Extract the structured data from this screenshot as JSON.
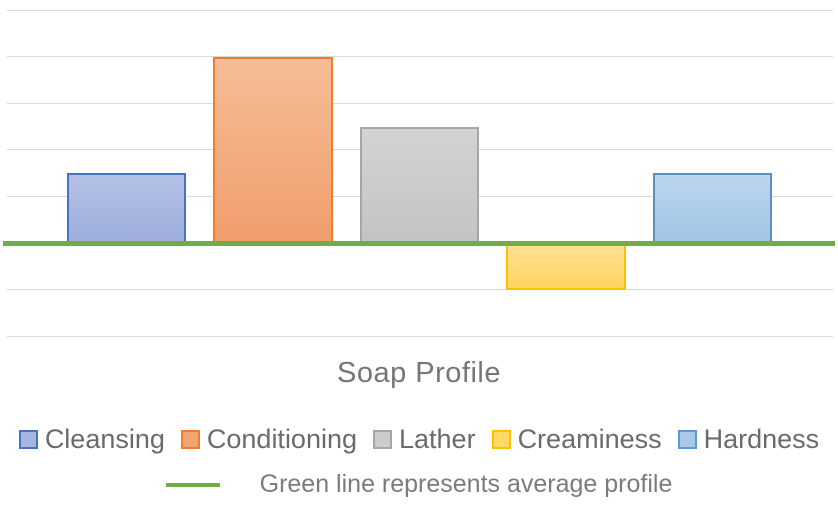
{
  "chart": {
    "title": "Soap Profile",
    "legend": {
      "items": [
        {
          "label": "Cleansing",
          "fill": "#a6b6e1",
          "border": "#4472c4"
        },
        {
          "label": "Conditioning",
          "fill": "#f2a573",
          "border": "#ed7d31"
        },
        {
          "label": "Lather",
          "fill": "#cccccc",
          "border": "#a6a6a6"
        },
        {
          "label": "Creaminess",
          "fill": "#ffd966",
          "border": "#ffc000"
        },
        {
          "label": "Hardness",
          "fill": "#a9c9e7",
          "border": "#5b9bd5"
        }
      ],
      "average": {
        "label": "Green line represents average profile",
        "color": "#70ad47"
      }
    }
  },
  "chart_data": {
    "type": "bar",
    "title": "Soap Profile",
    "xlabel": "",
    "ylabel": "",
    "categories": [
      "Cleansing",
      "Conditioning",
      "Lather",
      "Creaminess",
      "Hardness"
    ],
    "values": [
      1.5,
      4,
      2.5,
      -1,
      1.5
    ],
    "ylim": [
      -2,
      5
    ],
    "gridline_step": 1,
    "grid": true,
    "legend_position": "bottom",
    "axis_tick_labels_visible": false,
    "average_line": {
      "value": 0,
      "color": "#70ad47",
      "label": "Green line represents average profile"
    },
    "series_styles": [
      {
        "name": "Cleansing",
        "fill_top": "#b5c1e6",
        "fill_bottom": "#9eafdc",
        "border": "#4472c4"
      },
      {
        "name": "Conditioning",
        "fill_top": "#f6bd97",
        "fill_bottom": "#f09e6c",
        "border": "#ed7d31"
      },
      {
        "name": "Lather",
        "fill_top": "#d3d3d3",
        "fill_bottom": "#c4c4c4",
        "border": "#a6a6a6"
      },
      {
        "name": "Creaminess",
        "fill_top": "#ffe195",
        "fill_bottom": "#ffd45f",
        "border": "#ffc000"
      },
      {
        "name": "Hardness",
        "fill_top": "#bcd5ee",
        "fill_bottom": "#a2c6e6",
        "border": "#5c8fc0"
      }
    ]
  }
}
